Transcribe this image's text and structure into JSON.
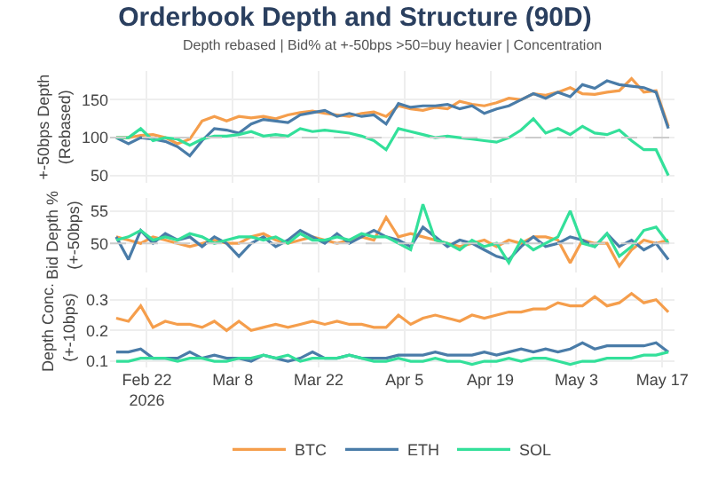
{
  "chart_data": [
    {
      "type": "line",
      "title": "Orderbook Depth and Structure (90D)",
      "subtitle": "Depth rebased | Bid% at +-50bps >50=buy heavier | Concentration",
      "ylabel": "+-50bps Depth\n(Rebased)",
      "grid": true,
      "tick_labels": "y",
      "legend": "bottom",
      "x": [
        "2026-02-17",
        "2026-02-19",
        "2026-02-21",
        "2026-02-23",
        "2026-02-25",
        "2026-02-27",
        "2026-03-01",
        "2026-03-03",
        "2026-03-05",
        "2026-03-07",
        "2026-03-09",
        "2026-03-11",
        "2026-03-13",
        "2026-03-15",
        "2026-03-17",
        "2026-03-19",
        "2026-03-21",
        "2026-03-23",
        "2026-03-25",
        "2026-03-27",
        "2026-03-29",
        "2026-03-31",
        "2026-04-02",
        "2026-04-04",
        "2026-04-06",
        "2026-04-08",
        "2026-04-10",
        "2026-04-12",
        "2026-04-14",
        "2026-04-16",
        "2026-04-18",
        "2026-04-20",
        "2026-04-22",
        "2026-04-24",
        "2026-04-26",
        "2026-04-28",
        "2026-04-30",
        "2026-05-02",
        "2026-05-04",
        "2026-05-06",
        "2026-05-08",
        "2026-05-10",
        "2026-05-12",
        "2026-05-14",
        "2026-05-16",
        "2026-05-18"
      ],
      "xlim": [
        "2026-02-16",
        "2026-05-19"
      ],
      "xticks": [
        {
          "value": "2026-02-22",
          "label": null
        },
        {
          "value": "2026-03-08",
          "label": null
        },
        {
          "value": "2026-03-22",
          "label": null
        },
        {
          "value": "2026-04-05",
          "label": null
        },
        {
          "value": "2026-04-19",
          "label": null
        },
        {
          "value": "2026-05-03",
          "label": null
        },
        {
          "value": "2026-05-17",
          "label": null
        }
      ],
      "ylim": [
        40,
        188
      ],
      "yticks": [
        50,
        100,
        150
      ],
      "ref_lines": [
        {
          "axis": "y",
          "value": 100,
          "color": "#cccccc",
          "line_style": "dashed"
        }
      ],
      "series": [
        {
          "name": "BTC",
          "color": "#f59e4c",
          "values": [
            100,
            100,
            103,
            104,
            100,
            92,
            98,
            122,
            128,
            122,
            128,
            126,
            128,
            125,
            130,
            133,
            135,
            132,
            130,
            128,
            132,
            134,
            128,
            142,
            138,
            136,
            140,
            138,
            148,
            144,
            142,
            146,
            152,
            150,
            158,
            156,
            160,
            166,
            158,
            157,
            160,
            162,
            178,
            160,
            162,
            115
          ]
        },
        {
          "name": "ETH",
          "color": "#4a7ca8",
          "values": [
            100,
            92,
            100,
            98,
            95,
            88,
            76,
            96,
            112,
            110,
            106,
            118,
            124,
            122,
            120,
            130,
            133,
            136,
            128,
            132,
            128,
            130,
            118,
            145,
            140,
            142,
            142,
            144,
            138,
            142,
            132,
            138,
            142,
            150,
            158,
            152,
            160,
            154,
            170,
            165,
            175,
            170,
            168,
            166,
            160,
            112
          ]
        },
        {
          "name": "SOL",
          "color": "#33e09a",
          "values": [
            100,
            100,
            112,
            96,
            100,
            98,
            90,
            98,
            102,
            102,
            104,
            108,
            102,
            104,
            102,
            112,
            108,
            110,
            108,
            106,
            102,
            96,
            84,
            112,
            108,
            104,
            100,
            102,
            100,
            98,
            96,
            94,
            100,
            110,
            125,
            106,
            112,
            104,
            115,
            106,
            104,
            110,
            96,
            84,
            84,
            50
          ]
        }
      ]
    },
    {
      "type": "line",
      "ylabel": "Bid Depth %\n(+-50bps)",
      "grid": true,
      "tick_labels": "y",
      "x": [
        "2026-02-17",
        "2026-02-19",
        "2026-02-21",
        "2026-02-23",
        "2026-02-25",
        "2026-02-27",
        "2026-03-01",
        "2026-03-03",
        "2026-03-05",
        "2026-03-07",
        "2026-03-09",
        "2026-03-11",
        "2026-03-13",
        "2026-03-15",
        "2026-03-17",
        "2026-03-19",
        "2026-03-21",
        "2026-03-23",
        "2026-03-25",
        "2026-03-27",
        "2026-03-29",
        "2026-03-31",
        "2026-04-02",
        "2026-04-04",
        "2026-04-06",
        "2026-04-08",
        "2026-04-10",
        "2026-04-12",
        "2026-04-14",
        "2026-04-16",
        "2026-04-18",
        "2026-04-20",
        "2026-04-22",
        "2026-04-24",
        "2026-04-26",
        "2026-04-28",
        "2026-04-30",
        "2026-05-02",
        "2026-05-04",
        "2026-05-06",
        "2026-05-08",
        "2026-05-10",
        "2026-05-12",
        "2026-05-14",
        "2026-05-16",
        "2026-05-18"
      ],
      "xlim": [
        "2026-02-16",
        "2026-05-19"
      ],
      "xticks": [
        {
          "value": "2026-02-22",
          "label": null
        },
        {
          "value": "2026-03-08",
          "label": null
        },
        {
          "value": "2026-03-22",
          "label": null
        },
        {
          "value": "2026-04-05",
          "label": null
        },
        {
          "value": "2026-04-19",
          "label": null
        },
        {
          "value": "2026-05-03",
          "label": null
        },
        {
          "value": "2026-05-17",
          "label": null
        }
      ],
      "ylim": [
        45.5,
        57
      ],
      "yticks": [
        50,
        55
      ],
      "ref_lines": [
        {
          "axis": "y",
          "value": 50,
          "color": "#cccccc",
          "line_style": "dashed"
        }
      ],
      "series": [
        {
          "color": "#f59e4c",
          "values": [
            51,
            50.5,
            50,
            51,
            50.5,
            50,
            49.5,
            50,
            50.5,
            50,
            50,
            51,
            51.5,
            50.5,
            50,
            50.5,
            51,
            50.5,
            50,
            50.5,
            51,
            50.5,
            54,
            51,
            51.5,
            51,
            50.5,
            50,
            49.5,
            50,
            50.5,
            49.5,
            50.5,
            50,
            51,
            51,
            50.5,
            47,
            50.5,
            50,
            50,
            46.5,
            49,
            50.5,
            50,
            50.5
          ]
        },
        {
          "color": "#4a7ca8",
          "values": [
            51,
            47.5,
            52,
            50,
            51.5,
            50.5,
            51,
            49.5,
            51,
            50,
            48,
            50,
            51,
            49.5,
            50.5,
            52,
            51,
            50,
            51.5,
            50,
            51,
            52,
            51,
            50.5,
            49.5,
            52.5,
            51,
            49.5,
            50.5,
            50,
            49,
            48,
            47.5,
            49.5,
            51,
            49.5,
            50,
            51,
            50.5,
            49.5,
            51.5,
            49.5,
            50.5,
            49,
            50,
            47.5
          ]
        },
        {
          "color": "#33e09a",
          "values": [
            50.5,
            51,
            52,
            50.5,
            51,
            50.5,
            51.5,
            51,
            50,
            50.5,
            51,
            51,
            50.5,
            51,
            50,
            51.5,
            50.5,
            50.5,
            51,
            50.5,
            51.5,
            51,
            51,
            50,
            49,
            56,
            50.5,
            50,
            49,
            50.5,
            49.5,
            50,
            47,
            50.5,
            49,
            50,
            51,
            55,
            50,
            49.5,
            51.5,
            48,
            49.5,
            52,
            52.5,
            50
          ]
        }
      ]
    },
    {
      "type": "line",
      "ylabel": "Depth Conc.\n(+-10bps)",
      "grid": true,
      "x": [
        "2026-02-17",
        "2026-02-19",
        "2026-02-21",
        "2026-02-23",
        "2026-02-25",
        "2026-02-27",
        "2026-03-01",
        "2026-03-03",
        "2026-03-05",
        "2026-03-07",
        "2026-03-09",
        "2026-03-11",
        "2026-03-13",
        "2026-03-15",
        "2026-03-17",
        "2026-03-19",
        "2026-03-21",
        "2026-03-23",
        "2026-03-25",
        "2026-03-27",
        "2026-03-29",
        "2026-03-31",
        "2026-04-02",
        "2026-04-04",
        "2026-04-06",
        "2026-04-08",
        "2026-04-10",
        "2026-04-12",
        "2026-04-14",
        "2026-04-16",
        "2026-04-18",
        "2026-04-20",
        "2026-04-22",
        "2026-04-24",
        "2026-04-26",
        "2026-04-28",
        "2026-04-30",
        "2026-05-02",
        "2026-05-04",
        "2026-05-06",
        "2026-05-08",
        "2026-05-10",
        "2026-05-12",
        "2026-05-14",
        "2026-05-16",
        "2026-05-18"
      ],
      "xlim": [
        "2026-02-16",
        "2026-05-19"
      ],
      "xticks": [
        {
          "value": "2026-02-22",
          "label": "Feb 22\n2026"
        },
        {
          "value": "2026-03-08",
          "label": "Mar 8"
        },
        {
          "value": "2026-03-22",
          "label": "Mar 22"
        },
        {
          "value": "2026-04-05",
          "label": "Apr 5"
        },
        {
          "value": "2026-04-19",
          "label": "Apr 19"
        },
        {
          "value": "2026-05-03",
          "label": "May 3"
        },
        {
          "value": "2026-05-17",
          "label": "May 17"
        }
      ],
      "ylim": [
        0.08,
        0.34
      ],
      "yticks": [
        0.1,
        0.2,
        0.3
      ],
      "series": [
        {
          "color": "#f59e4c",
          "values": [
            0.24,
            0.23,
            0.28,
            0.21,
            0.23,
            0.22,
            0.22,
            0.21,
            0.23,
            0.2,
            0.23,
            0.2,
            0.21,
            0.22,
            0.21,
            0.22,
            0.23,
            0.22,
            0.23,
            0.22,
            0.22,
            0.21,
            0.21,
            0.25,
            0.22,
            0.24,
            0.25,
            0.24,
            0.23,
            0.25,
            0.24,
            0.25,
            0.26,
            0.26,
            0.27,
            0.27,
            0.29,
            0.28,
            0.28,
            0.31,
            0.28,
            0.29,
            0.32,
            0.29,
            0.3,
            0.26
          ]
        },
        {
          "color": "#4a7ca8",
          "values": [
            0.13,
            0.13,
            0.14,
            0.11,
            0.11,
            0.11,
            0.13,
            0.11,
            0.12,
            0.11,
            0.11,
            0.1,
            0.12,
            0.11,
            0.1,
            0.11,
            0.13,
            0.11,
            0.11,
            0.12,
            0.11,
            0.11,
            0.11,
            0.12,
            0.12,
            0.12,
            0.13,
            0.12,
            0.12,
            0.12,
            0.13,
            0.12,
            0.13,
            0.14,
            0.13,
            0.14,
            0.13,
            0.14,
            0.16,
            0.14,
            0.15,
            0.15,
            0.15,
            0.15,
            0.16,
            0.13
          ]
        },
        {
          "color": "#33e09a",
          "values": [
            0.1,
            0.1,
            0.11,
            0.11,
            0.11,
            0.1,
            0.11,
            0.11,
            0.1,
            0.1,
            0.11,
            0.11,
            0.12,
            0.11,
            0.12,
            0.1,
            0.11,
            0.11,
            0.11,
            0.12,
            0.11,
            0.1,
            0.1,
            0.11,
            0.1,
            0.1,
            0.11,
            0.1,
            0.1,
            0.09,
            0.1,
            0.1,
            0.11,
            0.1,
            0.11,
            0.11,
            0.1,
            0.09,
            0.1,
            0.1,
            0.11,
            0.11,
            0.11,
            0.12,
            0.12,
            0.13
          ]
        }
      ]
    }
  ]
}
